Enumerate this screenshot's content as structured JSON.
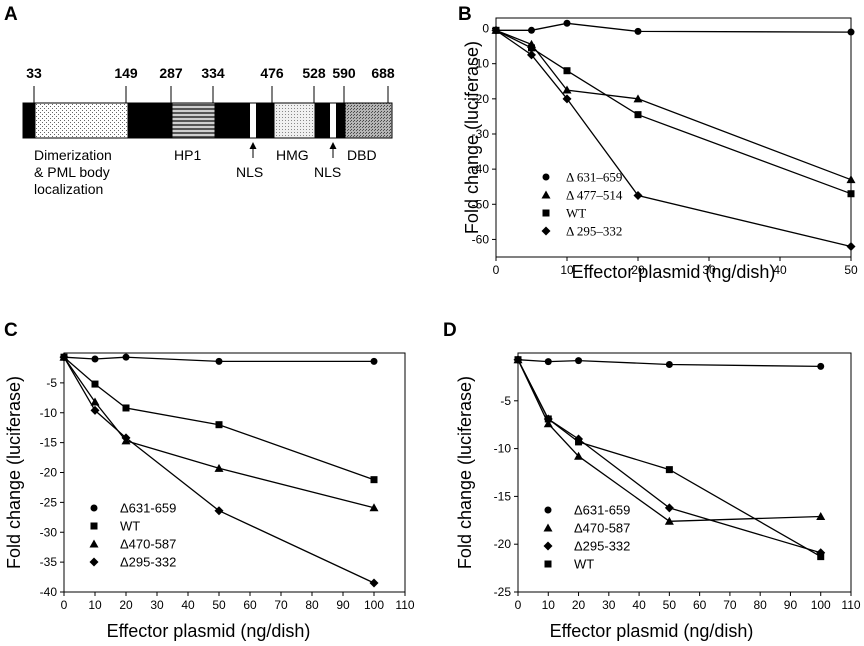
{
  "panels": [
    "A",
    "B",
    "C",
    "D"
  ],
  "domain_diagram": {
    "positions": [
      "33",
      "149",
      "287",
      "334",
      "476",
      "528",
      "590",
      "688"
    ],
    "labels": {
      "dimerization": [
        "Dimerization",
        "& PML body",
        "localization"
      ],
      "hp1": "HP1",
      "nls1": "NLS",
      "hmg": "HMG",
      "nls2": "NLS",
      "dbd": "DBD"
    }
  },
  "chart_data": [
    {
      "type": "line",
      "panel": "B",
      "xlabel": "Effector plasmid (ng/dish)",
      "ylabel": "Fold change (luciferase)",
      "xlim": [
        0,
        50
      ],
      "ylim": [
        -65,
        3
      ],
      "xticks": [
        0,
        10,
        20,
        30,
        40,
        50
      ],
      "yticks": [
        0,
        -10,
        -20,
        -30,
        -40,
        -50,
        -60
      ],
      "legend_position": "bottom-left",
      "x": [
        0,
        5,
        10,
        20,
        50
      ],
      "series": [
        {
          "name": "Δ 631–659",
          "marker": "circle",
          "values": [
            -0.5,
            -0.5,
            1.5,
            -0.8,
            -1
          ]
        },
        {
          "name": "Δ 477–514",
          "marker": "triangle",
          "values": [
            -0.5,
            -4.5,
            -17.5,
            -20,
            -43
          ]
        },
        {
          "name": "WT",
          "marker": "square",
          "values": [
            -0.5,
            -5.5,
            -12,
            -24.5,
            -47
          ]
        },
        {
          "name": "Δ 295–332",
          "marker": "diamond",
          "values": [
            -0.5,
            -7.5,
            -20,
            -47.5,
            -62
          ]
        }
      ]
    },
    {
      "type": "line",
      "panel": "C",
      "xlabel": "Effector plasmid (ng/dish)",
      "ylabel": "Fold change (luciferase)",
      "xlim": [
        0,
        110
      ],
      "ylim": [
        -40,
        0
      ],
      "xticks": [
        0,
        10,
        20,
        30,
        40,
        50,
        60,
        70,
        80,
        90,
        100,
        110
      ],
      "yticks": [
        -5,
        -10,
        -15,
        -20,
        -25,
        -30,
        -35,
        -40
      ],
      "legend_position": "bottom-left",
      "x": [
        0,
        10,
        20,
        50,
        100
      ],
      "series": [
        {
          "name": "Δ631-659",
          "marker": "circle",
          "values": [
            -0.7,
            -1,
            -0.7,
            -1.4,
            -1.4
          ]
        },
        {
          "name": "WT",
          "marker": "square",
          "values": [
            -0.7,
            -5.2,
            -9.2,
            -12,
            -21.2
          ]
        },
        {
          "name": "Δ470-587",
          "marker": "triangle",
          "values": [
            -0.7,
            -8.2,
            -14.7,
            -19.3,
            -25.9
          ]
        },
        {
          "name": "Δ295-332",
          "marker": "diamond",
          "values": [
            -0.7,
            -9.6,
            -14.2,
            -26.4,
            -38.5
          ]
        }
      ]
    },
    {
      "type": "line",
      "panel": "D",
      "xlabel": "Effector plasmid (ng/dish)",
      "ylabel": "Fold change (luciferase)",
      "xlim": [
        0,
        110
      ],
      "ylim": [
        -25,
        0
      ],
      "xticks": [
        0,
        10,
        20,
        30,
        40,
        50,
        60,
        70,
        80,
        90,
        100,
        110
      ],
      "yticks": [
        -5,
        -10,
        -15,
        -20,
        -25
      ],
      "legend_position": "bottom-left",
      "x": [
        0,
        10,
        20,
        50,
        100
      ],
      "series": [
        {
          "name": "Δ631-659",
          "marker": "circle",
          "values": [
            -0.7,
            -0.9,
            -0.8,
            -1.2,
            -1.4
          ]
        },
        {
          "name": "Δ470-587",
          "marker": "triangle",
          "values": [
            -0.7,
            -7.4,
            -10.8,
            -17.6,
            -17.1
          ]
        },
        {
          "name": "Δ295-332",
          "marker": "diamond",
          "values": [
            -0.7,
            -6.9,
            -9.0,
            -16.2,
            -20.9
          ]
        },
        {
          "name": "WT",
          "marker": "square",
          "values": [
            -0.7,
            -6.9,
            -9.3,
            -12.2,
            -21.3
          ]
        }
      ]
    }
  ]
}
